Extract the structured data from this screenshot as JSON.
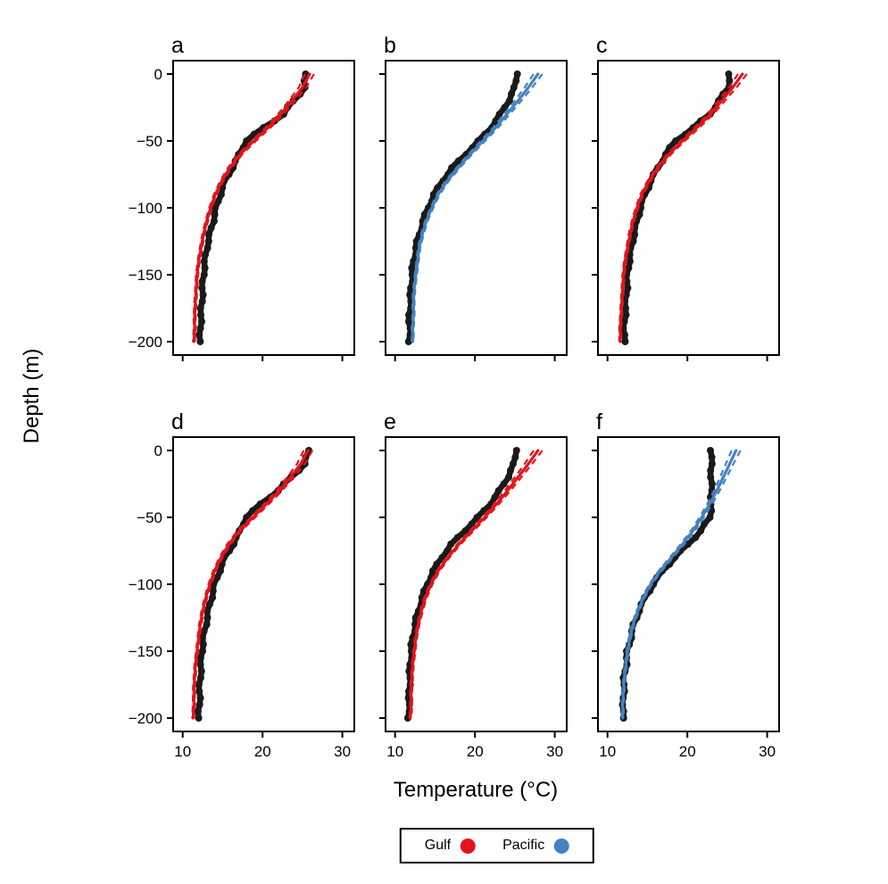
{
  "chart_data": {
    "type": "line",
    "title": "",
    "xlabel": "Temperature (°C)",
    "ylabel": "Depth (m)",
    "xlim": [
      8.8,
      31.5
    ],
    "ylim": [
      -210,
      10
    ],
    "x_ticks": [
      10,
      20,
      30
    ],
    "x_tick_labels": [
      "10",
      "20",
      "30"
    ],
    "y_ticks": [
      0,
      -50,
      -100,
      -150,
      -200
    ],
    "y_tick_labels": [
      "0",
      "−50",
      "−100",
      "−150",
      "−200"
    ],
    "grid": false,
    "legend_position": "bottom",
    "obs_color": "#1a1a1a",
    "legend": [
      {
        "label": "Gulf",
        "color": "#e3141c"
      },
      {
        "label": "Pacific",
        "color": "#4581bf"
      }
    ],
    "depths": [
      0,
      -10,
      -20,
      -30,
      -40,
      -50,
      -60,
      -70,
      -80,
      -90,
      -100,
      -110,
      -120,
      -130,
      -140,
      -150,
      -160,
      -170,
      -180,
      -190,
      -200
    ],
    "panels": [
      {
        "label": "a",
        "fit_region": "Gulf",
        "fit_color": "#e3141c",
        "band_surface": 0.55,
        "band_deep": 0.12,
        "obs": [
          25.4,
          25.3,
          23.9,
          22.6,
          20.2,
          17.9,
          17.1,
          16.2,
          15.3,
          14.7,
          14.2,
          13.8,
          13.4,
          13.0,
          12.8,
          12.6,
          12.5,
          12.4,
          12.3,
          12.2,
          12.2
        ],
        "fit": [
          25.9,
          25.0,
          23.7,
          22.3,
          20.7,
          18.9,
          17.2,
          15.9,
          14.9,
          14.1,
          13.5,
          13.0,
          12.6,
          12.3,
          12.0,
          11.8,
          11.7,
          11.6,
          11.5,
          11.5,
          11.4
        ]
      },
      {
        "label": "b",
        "fit_region": "Pacific",
        "fit_color": "#4581bf",
        "band_surface": 0.55,
        "band_deep": 0.12,
        "obs": [
          25.2,
          25.0,
          24.2,
          23.2,
          22.0,
          20.5,
          18.8,
          17.2,
          15.9,
          14.9,
          14.1,
          13.5,
          13.0,
          12.6,
          12.3,
          12.1,
          12.0,
          11.9,
          11.8,
          11.8,
          11.8
        ],
        "fit": [
          27.9,
          26.7,
          25.4,
          24.0,
          22.6,
          21.0,
          19.4,
          17.9,
          16.5,
          15.4,
          14.6,
          13.9,
          13.4,
          13.0,
          12.8,
          12.6,
          12.4,
          12.3,
          12.3,
          12.2,
          12.2
        ]
      },
      {
        "label": "c",
        "fit_region": "Gulf",
        "fit_color": "#e3141c",
        "band_surface": 0.55,
        "band_deep": 0.12,
        "obs": [
          25.3,
          25.1,
          24.0,
          22.8,
          20.8,
          18.5,
          17.3,
          16.3,
          15.4,
          14.7,
          14.1,
          13.7,
          13.3,
          13.0,
          12.7,
          12.5,
          12.4,
          12.3,
          12.2,
          12.1,
          12.1
        ],
        "fit": [
          26.9,
          25.7,
          24.3,
          22.9,
          21.2,
          19.4,
          17.7,
          16.3,
          15.2,
          14.3,
          13.7,
          13.2,
          12.8,
          12.5,
          12.2,
          12.0,
          11.9,
          11.8,
          11.7,
          11.6,
          11.6
        ]
      },
      {
        "label": "d",
        "fit_region": "Gulf",
        "fit_color": "#e3141c",
        "band_surface": 0.55,
        "band_deep": 0.12,
        "obs": [
          25.8,
          25.3,
          23.6,
          21.9,
          19.8,
          17.9,
          17.2,
          16.3,
          15.3,
          14.6,
          14.0,
          13.6,
          13.2,
          12.9,
          12.6,
          12.4,
          12.3,
          12.2,
          12.1,
          12.1,
          12.0
        ],
        "fit": [
          25.7,
          24.8,
          23.5,
          22.1,
          20.5,
          18.8,
          17.1,
          15.8,
          14.8,
          14.0,
          13.4,
          12.9,
          12.5,
          12.2,
          12.0,
          11.8,
          11.6,
          11.5,
          11.4,
          11.4,
          11.3
        ]
      },
      {
        "label": "e",
        "fit_region": "Gulf",
        "fit_color": "#e3141c",
        "band_surface": 0.55,
        "band_deep": 0.12,
        "obs": [
          25.1,
          24.9,
          24.1,
          23.1,
          21.9,
          20.4,
          18.7,
          17.1,
          15.8,
          14.8,
          14.0,
          13.4,
          12.9,
          12.5,
          12.2,
          12.0,
          11.9,
          11.8,
          11.8,
          11.7,
          11.7
        ],
        "fit": [
          27.9,
          26.7,
          25.4,
          24.1,
          22.7,
          21.2,
          19.6,
          18.0,
          16.6,
          15.4,
          14.5,
          13.8,
          13.3,
          12.9,
          12.6,
          12.4,
          12.2,
          12.1,
          12.0,
          12.0,
          11.9
        ]
      },
      {
        "label": "f",
        "fit_region": "Pacific",
        "fit_color": "#4581bf",
        "band_surface": 0.55,
        "band_deep": 0.12,
        "obs": [
          23.0,
          23.0,
          23.0,
          23.0,
          23.0,
          22.8,
          21.7,
          20.1,
          18.4,
          16.9,
          15.7,
          14.7,
          13.9,
          13.3,
          12.9,
          12.5,
          12.3,
          12.1,
          12.0,
          12.0,
          11.9
        ],
        "fit": [
          26.1,
          25.3,
          24.5,
          23.7,
          22.8,
          21.8,
          20.7,
          19.4,
          18.0,
          16.6,
          15.4,
          14.5,
          13.8,
          13.2,
          12.8,
          12.5,
          12.3,
          12.1,
          12.0,
          11.9,
          11.9
        ]
      }
    ]
  }
}
